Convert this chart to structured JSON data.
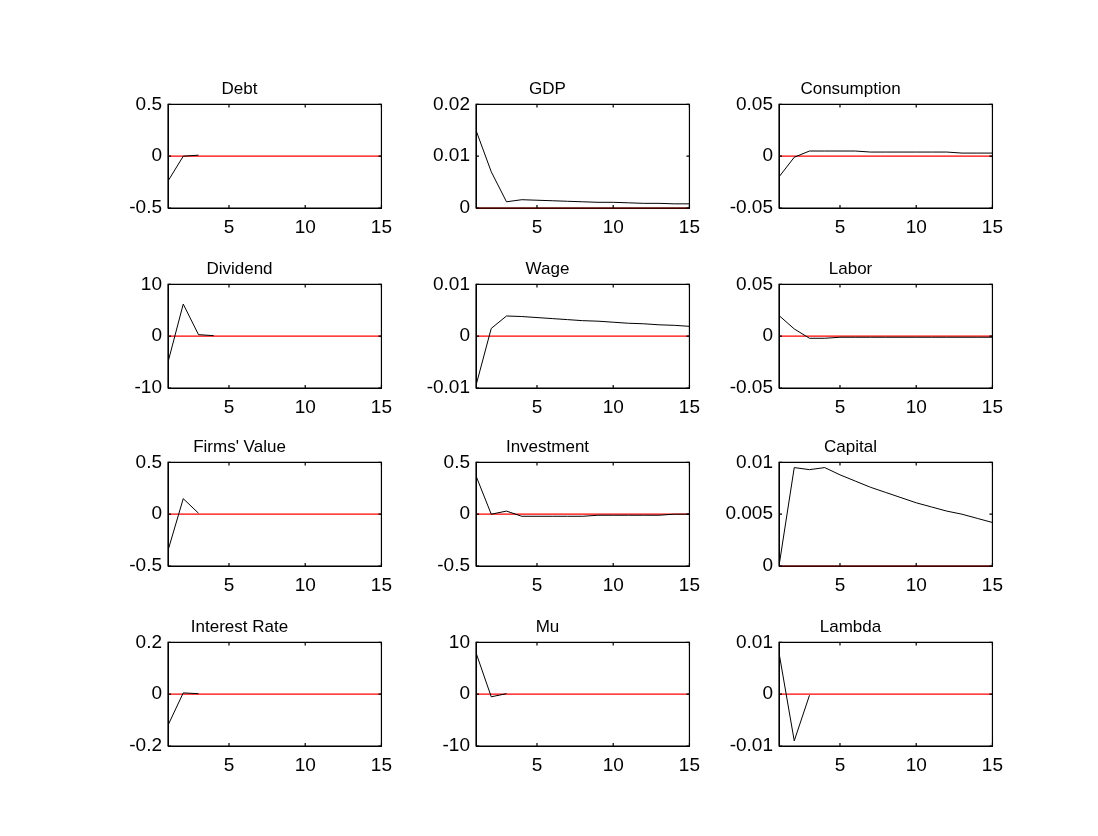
{
  "chart_data": [
    {
      "type": "line",
      "title": "Debt",
      "x": [
        1,
        2,
        3
      ],
      "xlim": [
        1,
        15
      ],
      "xticks": [
        5,
        10,
        15
      ],
      "ylim": [
        -0.5,
        0.5
      ],
      "yticks": [
        -0.5,
        0,
        0.5
      ],
      "ref_lines": [
        {
          "axis": "y",
          "value": 0,
          "color": "#ff0000"
        }
      ],
      "series": [
        {
          "color": "#000000",
          "values": [
            -0.24,
            0,
            0.01
          ]
        }
      ]
    },
    {
      "type": "line",
      "title": "GDP",
      "x": [
        1,
        2,
        3,
        4,
        5,
        6,
        7,
        8,
        9,
        10,
        11,
        12,
        13,
        14,
        15
      ],
      "xlim": [
        1,
        15
      ],
      "xticks": [
        5,
        10,
        15
      ],
      "ylim": [
        0,
        0.02
      ],
      "yticks": [
        0,
        0.01,
        0.02
      ],
      "ref_lines": [
        {
          "axis": "y",
          "value": 0,
          "color": "#ff0000"
        }
      ],
      "series": [
        {
          "color": "#000000",
          "values": [
            0.015,
            0.007,
            0.0012,
            0.0016,
            0.0015,
            0.0014,
            0.0013,
            0.0012,
            0.0011,
            0.0011,
            0.001,
            0.0009,
            0.0009,
            0.0008,
            0.0008
          ]
        }
      ]
    },
    {
      "type": "line",
      "title": "Consumption",
      "x": [
        1,
        2,
        3,
        4,
        5,
        6,
        7,
        8,
        9,
        10,
        11,
        12,
        13,
        14,
        15
      ],
      "xlim": [
        1,
        15
      ],
      "xticks": [
        5,
        10,
        15
      ],
      "ylim": [
        -0.05,
        0.05
      ],
      "yticks": [
        -0.05,
        0,
        0.05
      ],
      "ref_lines": [
        {
          "axis": "y",
          "value": 0,
          "color": "#ff0000"
        }
      ],
      "series": [
        {
          "color": "#000000",
          "values": [
            -0.02,
            -0.001,
            0.005,
            0.005,
            0.005,
            0.005,
            0.004,
            0.004,
            0.004,
            0.004,
            0.004,
            0.004,
            0.003,
            0.003,
            0.003
          ]
        }
      ]
    },
    {
      "type": "line",
      "title": "Dividend",
      "x": [
        1,
        2,
        3,
        4
      ],
      "xlim": [
        1,
        15
      ],
      "xticks": [
        5,
        10,
        15
      ],
      "ylim": [
        -10,
        10
      ],
      "yticks": [
        -10,
        0,
        10
      ],
      "ref_lines": [
        {
          "axis": "y",
          "value": 0,
          "color": "#ff0000"
        }
      ],
      "series": [
        {
          "color": "#000000",
          "values": [
            -5,
            6.2,
            0.3,
            0.1
          ]
        }
      ]
    },
    {
      "type": "line",
      "title": "Wage",
      "x": [
        1,
        2,
        3,
        4,
        5,
        6,
        7,
        8,
        9,
        10,
        11,
        12,
        13,
        14,
        15
      ],
      "xlim": [
        1,
        15
      ],
      "xticks": [
        5,
        10,
        15
      ],
      "ylim": [
        -0.01,
        0.01
      ],
      "yticks": [
        -0.01,
        0,
        0.01
      ],
      "ref_lines": [
        {
          "axis": "y",
          "value": 0,
          "color": "#ff0000"
        }
      ],
      "series": [
        {
          "color": "#000000",
          "values": [
            -0.0095,
            0.0015,
            0.0039,
            0.0038,
            0.0036,
            0.0034,
            0.0032,
            0.003,
            0.0029,
            0.0027,
            0.0025,
            0.0024,
            0.0022,
            0.0021,
            0.0019
          ]
        }
      ]
    },
    {
      "type": "line",
      "title": "Labor",
      "x": [
        1,
        2,
        3,
        4,
        5,
        6,
        7,
        8,
        9,
        10,
        11,
        12,
        13,
        14,
        15
      ],
      "xlim": [
        1,
        15
      ],
      "xticks": [
        5,
        10,
        15
      ],
      "ylim": [
        -0.05,
        0.05
      ],
      "yticks": [
        -0.05,
        0,
        0.05
      ],
      "ref_lines": [
        {
          "axis": "y",
          "value": 0,
          "color": "#ff0000"
        }
      ],
      "series": [
        {
          "color": "#000000",
          "values": [
            0.02,
            0.007,
            -0.002,
            -0.002,
            -0.001,
            -0.001,
            -0.001,
            -0.001,
            -0.001,
            -0.001,
            -0.001,
            -0.001,
            -0.001,
            -0.001,
            -0.001
          ]
        }
      ]
    },
    {
      "type": "line",
      "title": "Firms' Value",
      "x": [
        1,
        2,
        3
      ],
      "xlim": [
        1,
        15
      ],
      "xticks": [
        5,
        10,
        15
      ],
      "ylim": [
        -0.5,
        0.5
      ],
      "yticks": [
        -0.5,
        0,
        0.5
      ],
      "ref_lines": [
        {
          "axis": "y",
          "value": 0,
          "color": "#ff0000"
        }
      ],
      "series": [
        {
          "color": "#000000",
          "values": [
            -0.35,
            0.15,
            0.01
          ]
        }
      ]
    },
    {
      "type": "line",
      "title": "Investment",
      "x": [
        1,
        2,
        3,
        4,
        5,
        6,
        7,
        8,
        9,
        10,
        11,
        12,
        13,
        14,
        15
      ],
      "xlim": [
        1,
        15
      ],
      "xticks": [
        5,
        10,
        15
      ],
      "ylim": [
        -0.5,
        0.5
      ],
      "yticks": [
        -0.5,
        0,
        0.5
      ],
      "ref_lines": [
        {
          "axis": "y",
          "value": 0,
          "color": "#ff0000"
        }
      ],
      "series": [
        {
          "color": "#000000",
          "values": [
            0.37,
            0,
            0.03,
            -0.02,
            -0.02,
            -0.02,
            -0.02,
            -0.02,
            -0.01,
            -0.01,
            -0.01,
            -0.01,
            -0.01,
            0,
            0
          ]
        }
      ]
    },
    {
      "type": "line",
      "title": "Capital",
      "x": [
        1,
        2,
        3,
        4,
        5,
        6,
        7,
        8,
        9,
        10,
        11,
        12,
        13,
        14,
        15
      ],
      "xlim": [
        1,
        15
      ],
      "xticks": [
        5,
        10,
        15
      ],
      "ylim": [
        0,
        0.01
      ],
      "yticks": [
        0,
        0.005,
        0.01
      ],
      "ref_lines": [
        {
          "axis": "y",
          "value": 0,
          "color": "#ff0000"
        }
      ],
      "series": [
        {
          "color": "#000000",
          "values": [
            0,
            0.0095,
            0.0093,
            0.0095,
            0.0088,
            0.0082,
            0.0076,
            0.0071,
            0.0066,
            0.0061,
            0.0057,
            0.0053,
            0.005,
            0.0046,
            0.0042
          ]
        }
      ]
    },
    {
      "type": "line",
      "title": "Interest Rate",
      "x": [
        1,
        2,
        3
      ],
      "xlim": [
        1,
        15
      ],
      "xticks": [
        5,
        10,
        15
      ],
      "ylim": [
        -0.2,
        0.2
      ],
      "yticks": [
        -0.2,
        0,
        0.2
      ],
      "ref_lines": [
        {
          "axis": "y",
          "value": 0,
          "color": "#ff0000"
        }
      ],
      "series": [
        {
          "color": "#000000",
          "values": [
            -0.12,
            0.005,
            0.002
          ]
        }
      ]
    },
    {
      "type": "line",
      "title": "Mu",
      "x": [
        1,
        2,
        3
      ],
      "xlim": [
        1,
        15
      ],
      "xticks": [
        5,
        10,
        15
      ],
      "ylim": [
        -10,
        10
      ],
      "yticks": [
        -10,
        0,
        10
      ],
      "ref_lines": [
        {
          "axis": "y",
          "value": 0,
          "color": "#ff0000"
        }
      ],
      "series": [
        {
          "color": "#000000",
          "values": [
            8,
            -0.5,
            0.1
          ]
        }
      ]
    },
    {
      "type": "line",
      "title": "Lambda",
      "x": [
        1,
        2,
        3
      ],
      "xlim": [
        1,
        15
      ],
      "xticks": [
        5,
        10,
        15
      ],
      "ylim": [
        -0.01,
        0.01
      ],
      "yticks": [
        -0.01,
        0,
        0.01
      ],
      "ref_lines": [
        {
          "axis": "y",
          "value": 0,
          "color": "#ff0000"
        }
      ],
      "series": [
        {
          "color": "#000000",
          "values": [
            0.008,
            -0.009,
            -0.0002
          ]
        }
      ]
    }
  ]
}
